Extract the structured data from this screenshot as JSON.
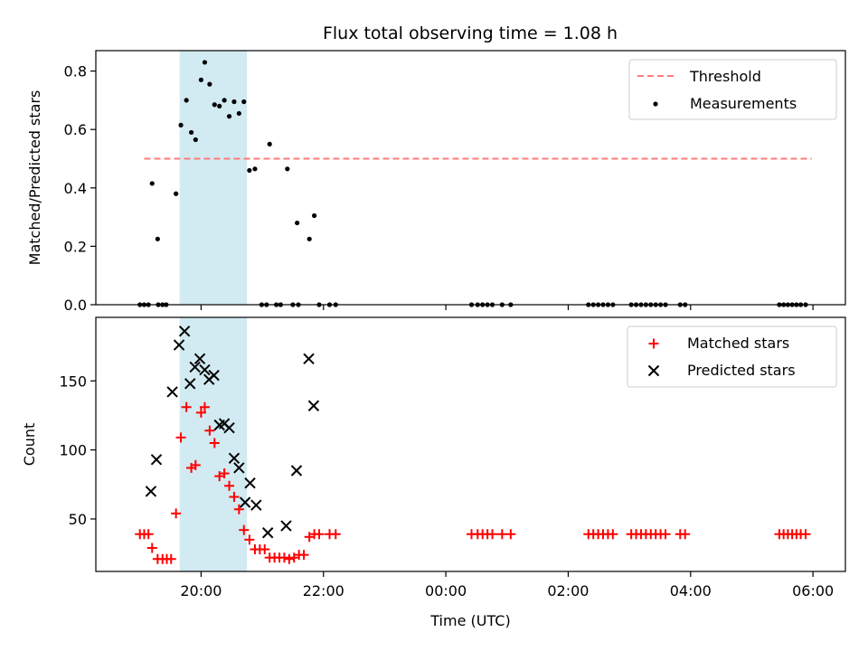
{
  "chart_data": {
    "type": "scatter",
    "title": "Flux total observing time = 1.08 h",
    "xlabel": "Time (UTC)",
    "x_unit": "hours (UTC, after 24:00 continues next day)",
    "xlim": [
      18.28,
      30.53
    ],
    "xticks": [
      {
        "value": 20,
        "label": "20:00"
      },
      {
        "value": 22,
        "label": "22:00"
      },
      {
        "value": 24,
        "label": "00:00"
      },
      {
        "value": 26,
        "label": "02:00"
      },
      {
        "value": 28,
        "label": "04:00"
      },
      {
        "value": 30,
        "label": "06:00"
      }
    ],
    "highlight_span": {
      "x": [
        19.65,
        20.75
      ],
      "color": "#add8e6"
    },
    "panels": [
      {
        "id": "ratio",
        "ylabel": "Matched/Predicted stars",
        "ylim": [
          0,
          0.87
        ],
        "yticks": [
          0,
          0.2,
          0.4,
          0.6,
          0.8
        ],
        "ytick_labels": [
          "0.0",
          "0.2",
          "0.4",
          "0.6",
          "0.8"
        ],
        "legend_position": "upper right",
        "threshold": {
          "name": "Threshold",
          "y": 0.5,
          "x": [
            19.07,
            29.98
          ],
          "color": "#ff7b7b",
          "style": "dashed"
        },
        "series": [
          {
            "name": "Measurements",
            "marker": "dot",
            "color": "#000000",
            "points": [
              [
                19.0,
                0
              ],
              [
                19.07,
                0
              ],
              [
                19.14,
                0
              ],
              [
                19.3,
                0
              ],
              [
                19.37,
                0
              ],
              [
                19.43,
                0
              ],
              [
                19.2,
                0.415
              ],
              [
                19.29,
                0.225
              ],
              [
                19.59,
                0.38
              ],
              [
                19.67,
                0.615
              ],
              [
                19.76,
                0.7
              ],
              [
                19.84,
                0.59
              ],
              [
                19.91,
                0.565
              ],
              [
                20.0,
                0.77
              ],
              [
                20.06,
                0.83
              ],
              [
                20.14,
                0.755
              ],
              [
                20.22,
                0.685
              ],
              [
                20.3,
                0.68
              ],
              [
                20.38,
                0.7
              ],
              [
                20.46,
                0.645
              ],
              [
                20.54,
                0.695
              ],
              [
                20.62,
                0.655
              ],
              [
                20.7,
                0.695
              ],
              [
                20.79,
                0.46
              ],
              [
                20.88,
                0.465
              ],
              [
                21.12,
                0.55
              ],
              [
                21.41,
                0.465
              ],
              [
                21.57,
                0.28
              ],
              [
                21.77,
                0.225
              ],
              [
                21.85,
                0.305
              ],
              [
                20.99,
                0
              ],
              [
                21.07,
                0
              ],
              [
                21.23,
                0
              ],
              [
                21.3,
                0
              ],
              [
                21.5,
                0
              ],
              [
                21.59,
                0
              ],
              [
                21.93,
                0
              ],
              [
                22.1,
                0
              ],
              [
                22.2,
                0
              ],
              [
                24.42,
                0
              ],
              [
                24.52,
                0
              ],
              [
                24.6,
                0
              ],
              [
                24.68,
                0
              ],
              [
                24.76,
                0
              ],
              [
                24.92,
                0
              ],
              [
                25.06,
                0
              ],
              [
                26.33,
                0
              ],
              [
                26.41,
                0
              ],
              [
                26.49,
                0
              ],
              [
                26.57,
                0
              ],
              [
                26.65,
                0
              ],
              [
                26.73,
                0
              ],
              [
                27.03,
                0
              ],
              [
                27.11,
                0
              ],
              [
                27.19,
                0
              ],
              [
                27.27,
                0
              ],
              [
                27.35,
                0
              ],
              [
                27.43,
                0
              ],
              [
                27.51,
                0
              ],
              [
                27.59,
                0
              ],
              [
                27.83,
                0
              ],
              [
                27.91,
                0
              ],
              [
                29.45,
                0
              ],
              [
                29.52,
                0
              ],
              [
                29.59,
                0
              ],
              [
                29.66,
                0
              ],
              [
                29.73,
                0
              ],
              [
                29.8,
                0
              ],
              [
                29.88,
                0
              ]
            ]
          }
        ]
      },
      {
        "id": "counts",
        "ylabel": "Count",
        "ylim": [
          12,
          196
        ],
        "yticks": [
          50,
          100,
          150
        ],
        "ytick_labels": [
          "50",
          "100",
          "150"
        ],
        "legend_position": "upper right",
        "series": [
          {
            "name": "Matched stars",
            "marker": "plus",
            "color": "#ff0000",
            "points": [
              [
                19.0,
                39
              ],
              [
                19.07,
                39
              ],
              [
                19.14,
                39
              ],
              [
                19.2,
                29
              ],
              [
                19.29,
                21
              ],
              [
                19.37,
                21
              ],
              [
                19.44,
                21
              ],
              [
                19.51,
                21
              ],
              [
                19.59,
                54
              ],
              [
                19.67,
                109
              ],
              [
                19.76,
                131
              ],
              [
                19.84,
                87
              ],
              [
                19.91,
                89
              ],
              [
                20.0,
                127
              ],
              [
                20.06,
                131
              ],
              [
                20.14,
                114
              ],
              [
                20.22,
                105
              ],
              [
                20.3,
                81
              ],
              [
                20.38,
                83
              ],
              [
                20.46,
                74
              ],
              [
                20.54,
                66
              ],
              [
                20.62,
                57
              ],
              [
                20.7,
                42
              ],
              [
                20.79,
                35
              ],
              [
                20.88,
                28
              ],
              [
                20.96,
                28
              ],
              [
                21.04,
                28
              ],
              [
                21.12,
                22
              ],
              [
                21.2,
                22
              ],
              [
                21.28,
                22
              ],
              [
                21.36,
                22
              ],
              [
                21.44,
                21
              ],
              [
                21.52,
                22
              ],
              [
                21.6,
                24
              ],
              [
                21.68,
                24
              ],
              [
                21.77,
                37
              ],
              [
                21.85,
                39
              ],
              [
                21.93,
                39
              ],
              [
                22.1,
                39
              ],
              [
                22.2,
                39
              ],
              [
                24.42,
                39
              ],
              [
                24.52,
                39
              ],
              [
                24.6,
                39
              ],
              [
                24.68,
                39
              ],
              [
                24.76,
                39
              ],
              [
                24.92,
                39
              ],
              [
                25.06,
                39
              ],
              [
                26.33,
                39
              ],
              [
                26.41,
                39
              ],
              [
                26.49,
                39
              ],
              [
                26.57,
                39
              ],
              [
                26.65,
                39
              ],
              [
                26.73,
                39
              ],
              [
                27.03,
                39
              ],
              [
                27.11,
                39
              ],
              [
                27.19,
                39
              ],
              [
                27.27,
                39
              ],
              [
                27.35,
                39
              ],
              [
                27.43,
                39
              ],
              [
                27.51,
                39
              ],
              [
                27.59,
                39
              ],
              [
                27.83,
                39
              ],
              [
                27.91,
                39
              ],
              [
                29.45,
                39
              ],
              [
                29.52,
                39
              ],
              [
                29.59,
                39
              ],
              [
                29.66,
                39
              ],
              [
                29.73,
                39
              ],
              [
                29.8,
                39
              ],
              [
                29.88,
                39
              ]
            ]
          },
          {
            "name": "Predicted stars",
            "marker": "x",
            "color": "#000000",
            "points": [
              [
                19.18,
                70
              ],
              [
                19.27,
                93
              ],
              [
                19.53,
                142
              ],
              [
                19.64,
                176
              ],
              [
                19.73,
                186
              ],
              [
                19.82,
                148
              ],
              [
                19.9,
                160
              ],
              [
                19.98,
                166
              ],
              [
                20.06,
                158
              ],
              [
                20.13,
                151
              ],
              [
                20.21,
                154
              ],
              [
                20.3,
                118
              ],
              [
                20.38,
                119
              ],
              [
                20.46,
                116
              ],
              [
                20.54,
                94
              ],
              [
                20.62,
                87
              ],
              [
                20.72,
                62
              ],
              [
                20.8,
                76
              ],
              [
                20.9,
                60
              ],
              [
                21.09,
                40
              ],
              [
                21.39,
                45
              ],
              [
                21.56,
                85
              ],
              [
                21.76,
                166
              ],
              [
                21.84,
                132
              ]
            ]
          }
        ]
      }
    ]
  }
}
